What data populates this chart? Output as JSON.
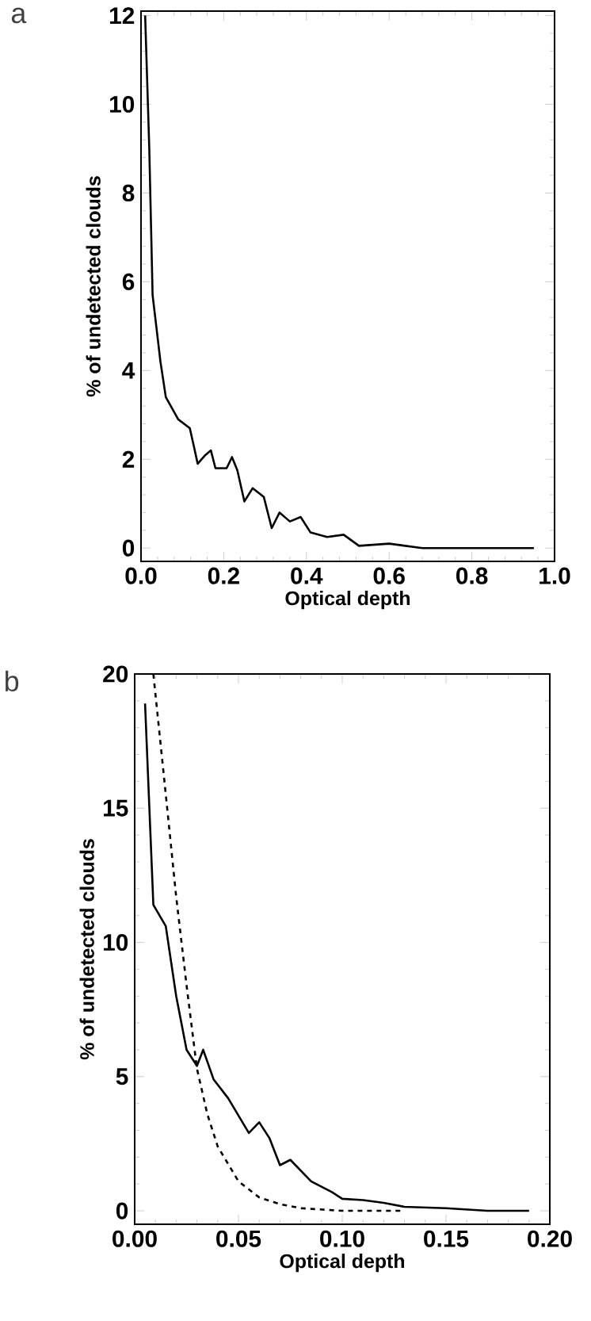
{
  "chart_data": [
    {
      "type": "line",
      "title": "a",
      "xlabel": "Optical depth",
      "ylabel": "% of undetected clouds",
      "xlim": [
        0,
        1
      ],
      "ylim": [
        -0.3,
        12.1
      ],
      "xticks": [
        {
          "value": 0,
          "label": "0.0"
        },
        {
          "value": 0.2,
          "label": "0.2"
        },
        {
          "value": 0.4,
          "label": "0.4"
        },
        {
          "value": 0.6,
          "label": "0.6"
        },
        {
          "value": 0.8,
          "label": "0.8"
        },
        {
          "value": 1,
          "label": "1.0"
        }
      ],
      "yticks": [
        0,
        2,
        4,
        6,
        8,
        10,
        12
      ],
      "series": [
        {
          "color": "#000000",
          "line_style": "solid",
          "x": [
            0.01,
            0.02,
            0.028,
            0.047,
            0.06,
            0.09,
            0.118,
            0.13,
            0.137,
            0.156,
            0.169,
            0.18,
            0.207,
            0.22,
            0.233,
            0.25,
            0.27,
            0.297,
            0.316,
            0.335,
            0.36,
            0.386,
            0.41,
            0.45,
            0.49,
            0.527,
            0.6,
            0.68,
            0.81,
            0.95
          ],
          "values": [
            12,
            9,
            5.7,
            4.2,
            3.4,
            2.9,
            2.7,
            2.2,
            1.9,
            2.1,
            2.2,
            1.8,
            1.8,
            2.05,
            1.75,
            1.05,
            1.35,
            1.15,
            0.45,
            0.8,
            0.6,
            0.7,
            0.35,
            0.25,
            0.3,
            0.05,
            0.1,
            0,
            0,
            0
          ]
        }
      ]
    },
    {
      "type": "line",
      "title": "b",
      "xlabel": "Optical depth",
      "ylabel": "% of undetected clouds",
      "xlim": [
        0,
        0.2
      ],
      "ylim": [
        -0.5,
        20
      ],
      "xticks": [
        {
          "value": 0,
          "label": "0.00"
        },
        {
          "value": 0.05,
          "label": "0.05"
        },
        {
          "value": 0.1,
          "label": "0.10"
        },
        {
          "value": 0.15,
          "label": "0.15"
        },
        {
          "value": 0.2,
          "label": "0.20"
        }
      ],
      "yticks": [
        0,
        5,
        10,
        15,
        20
      ],
      "series": [
        {
          "color": "#000000",
          "line_style": "solid",
          "x": [
            0.005,
            0.009,
            0.015,
            0.02,
            0.025,
            0.03,
            0.033,
            0.038,
            0.045,
            0.055,
            0.06,
            0.065,
            0.07,
            0.075,
            0.085,
            0.09,
            0.095,
            0.1,
            0.11,
            0.12,
            0.13,
            0.15,
            0.17,
            0.19
          ],
          "values": [
            18.9,
            11.4,
            10.6,
            8.0,
            6.0,
            5.4,
            6.0,
            4.9,
            4.2,
            2.9,
            3.3,
            2.7,
            1.7,
            1.9,
            1.1,
            0.9,
            0.7,
            0.45,
            0.4,
            0.3,
            0.15,
            0.1,
            0,
            0
          ]
        },
        {
          "color": "#000000",
          "line_style": "dashed",
          "x": [
            0.009,
            0.015,
            0.02,
            0.025,
            0.03,
            0.035,
            0.04,
            0.05,
            0.06,
            0.07,
            0.08,
            0.1,
            0.12,
            0.13
          ],
          "values": [
            20,
            15.5,
            11.7,
            8.4,
            5.3,
            3.6,
            2.4,
            1.1,
            0.5,
            0.25,
            0.1,
            0,
            0,
            0
          ]
        }
      ]
    }
  ]
}
